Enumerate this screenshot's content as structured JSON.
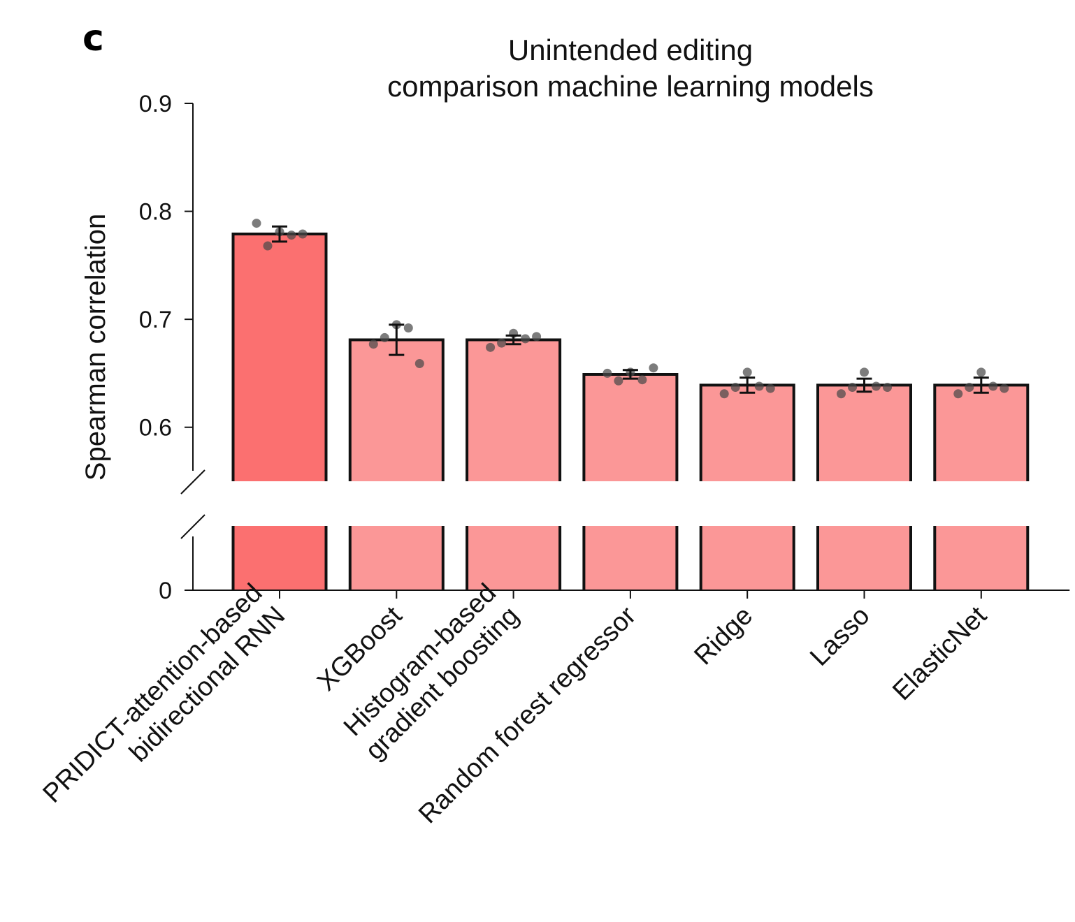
{
  "panel_letter": "c",
  "chart_data": {
    "type": "bar",
    "title_lines": [
      "Unintended editing",
      "comparison machine learning models"
    ],
    "ylabel": "Spearman correlation",
    "xlabel": "",
    "categories": [
      [
        "PRIDICT-attention-based",
        "bidirectional RNN"
      ],
      [
        "XGBoost"
      ],
      [
        "Histogram-based",
        "gradient boosting"
      ],
      [
        "Random forest regressor"
      ],
      [
        "Ridge"
      ],
      [
        "Lasso"
      ],
      [
        "ElasticNet"
      ]
    ],
    "values": [
      0.779,
      0.681,
      0.681,
      0.649,
      0.639,
      0.639,
      0.639
    ],
    "error": [
      0.007,
      0.014,
      0.004,
      0.004,
      0.007,
      0.006,
      0.007
    ],
    "points": [
      [
        0.789,
        0.768,
        0.781,
        0.778,
        0.779
      ],
      [
        0.677,
        0.683,
        0.695,
        0.692,
        0.659
      ],
      [
        0.674,
        0.678,
        0.687,
        0.682,
        0.684
      ],
      [
        0.65,
        0.643,
        0.651,
        0.644,
        0.655
      ],
      [
        0.631,
        0.637,
        0.651,
        0.638,
        0.636
      ],
      [
        0.631,
        0.637,
        0.651,
        0.638,
        0.637
      ],
      [
        0.631,
        0.637,
        0.651,
        0.638,
        0.636
      ]
    ],
    "yticks": [
      {
        "value": 0.9,
        "label": "0.9"
      },
      {
        "value": 0.8,
        "label": "0.8"
      },
      {
        "value": 0.7,
        "label": "0.7"
      },
      {
        "value": 0.6,
        "label": "0.6"
      },
      {
        "value": 0,
        "label": "0"
      }
    ],
    "ylim_upper": [
      0.55,
      0.9
    ],
    "axis_break": true,
    "colors": {
      "highlight_bar": "#fb7070",
      "bar": "#fb9797",
      "edge": "#111111",
      "point": "#4a4a4a"
    }
  }
}
